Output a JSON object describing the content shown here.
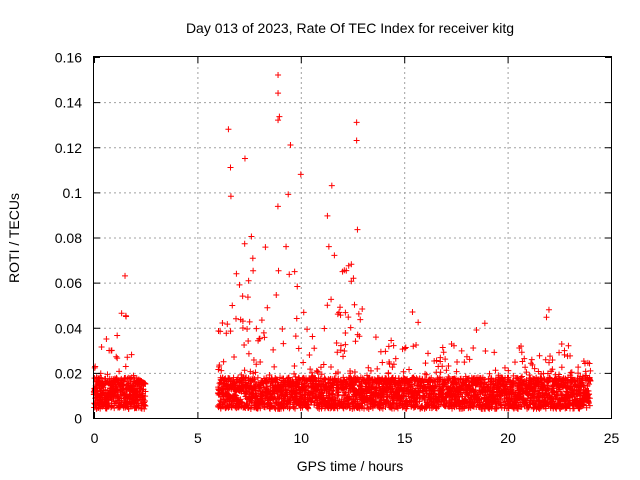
{
  "chart_data": {
    "type": "scatter",
    "title": "Day 013 of 2023, Rate Of TEC Index for receiver kitg",
    "xlabel": "GPS time / hours",
    "ylabel": "ROTI / TECUs",
    "xlim": [
      0,
      25
    ],
    "ylim": [
      0,
      0.16
    ],
    "x_ticks": [
      0,
      5,
      10,
      15,
      20,
      25
    ],
    "x_tick_labels": [
      "0",
      "5",
      "10",
      "15",
      "20",
      "25"
    ],
    "y_ticks": [
      0,
      0.02,
      0.04,
      0.06,
      0.08,
      0.1,
      0.12,
      0.14,
      0.16
    ],
    "y_tick_labels": [
      "0",
      "0.02",
      "0.04",
      "0.06",
      "0.08",
      "0.1",
      "0.12",
      "0.14",
      "0.16"
    ],
    "grid": true,
    "marker": "+",
    "color": "#ff0000",
    "series": [
      {
        "name": "ROTI",
        "description": "Dense scatter of ROTI values; coverage gap between ~2.6 h and ~5.8 h",
        "envelope_hours": [
          0.0,
          0.5,
          1.0,
          1.5,
          2.0,
          2.5,
          6.0,
          6.5,
          7.0,
          7.5,
          8.0,
          8.5,
          9.0,
          9.5,
          10.0,
          10.5,
          11.0,
          11.5,
          12.0,
          12.5,
          13.0,
          13.5,
          14.0,
          14.5,
          15.0,
          15.5,
          16.0,
          16.5,
          17.0,
          17.5,
          18.0,
          18.5,
          19.0,
          19.5,
          20.0,
          20.5,
          21.0,
          21.5,
          22.0,
          22.5,
          23.0,
          23.5,
          24.0
        ],
        "envelope_peak": [
          0.021,
          0.035,
          0.028,
          0.063,
          0.018,
          0.015,
          0.056,
          0.128,
          0.115,
          0.082,
          0.075,
          0.095,
          0.152,
          0.121,
          0.108,
          0.062,
          0.072,
          0.103,
          0.085,
          0.131,
          0.066,
          0.035,
          0.038,
          0.033,
          0.03,
          0.047,
          0.041,
          0.032,
          0.031,
          0.035,
          0.036,
          0.039,
          0.042,
          0.036,
          0.034,
          0.031,
          0.034,
          0.033,
          0.048,
          0.033,
          0.032,
          0.026,
          0.024
        ],
        "highlighted_points": [
          {
            "x": 0.6,
            "y": 0.035
          },
          {
            "x": 1.5,
            "y": 0.063
          },
          {
            "x": 1.55,
            "y": 0.045
          },
          {
            "x": 6.5,
            "y": 0.128
          },
          {
            "x": 6.6,
            "y": 0.111
          },
          {
            "x": 7.3,
            "y": 0.115
          },
          {
            "x": 8.9,
            "y": 0.152
          },
          {
            "x": 8.9,
            "y": 0.144
          },
          {
            "x": 8.9,
            "y": 0.132
          },
          {
            "x": 9.5,
            "y": 0.121
          },
          {
            "x": 10.0,
            "y": 0.108
          },
          {
            "x": 11.5,
            "y": 0.103
          },
          {
            "x": 12.7,
            "y": 0.131
          },
          {
            "x": 12.7,
            "y": 0.123
          },
          {
            "x": 15.4,
            "y": 0.047
          },
          {
            "x": 18.9,
            "y": 0.042
          },
          {
            "x": 22.0,
            "y": 0.048
          }
        ]
      }
    ]
  }
}
